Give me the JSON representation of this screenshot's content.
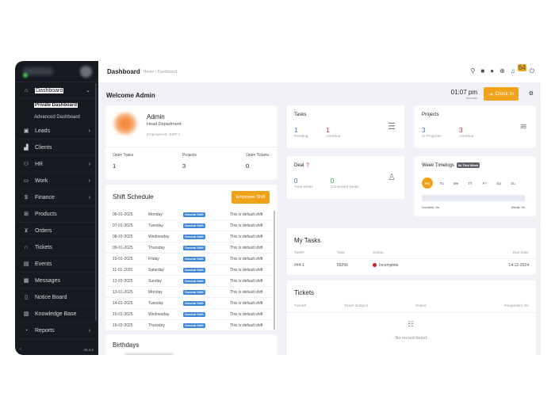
{
  "sidebar": {
    "items": [
      {
        "label": "Dashboard",
        "icon": "home-icon",
        "glyph": "⌂",
        "chevron": "⌄",
        "active": true
      },
      {
        "label": "Leads",
        "icon": "id-card-icon",
        "glyph": "▣",
        "chevron": "›"
      },
      {
        "label": "Clients",
        "icon": "bar-chart-icon",
        "glyph": "▟"
      },
      {
        "label": "HR",
        "icon": "users-icon",
        "glyph": "⚇",
        "chevron": "›"
      },
      {
        "label": "Work",
        "icon": "briefcase-icon",
        "glyph": "▭",
        "chevron": "›"
      },
      {
        "label": "Finance",
        "icon": "dollar-icon",
        "glyph": "$",
        "chevron": "›"
      },
      {
        "label": "Products",
        "icon": "basket-icon",
        "glyph": "⊞"
      },
      {
        "label": "Orders",
        "icon": "cart-icon",
        "glyph": "⊻"
      },
      {
        "label": "Tickets",
        "icon": "headset-icon",
        "glyph": "∩"
      },
      {
        "label": "Events",
        "icon": "calendar-icon",
        "glyph": "▤"
      },
      {
        "label": "Messages",
        "icon": "message-icon",
        "glyph": "▦"
      },
      {
        "label": "Notice Board",
        "icon": "clipboard-icon",
        "glyph": "▯"
      },
      {
        "label": "Knowledge Base",
        "icon": "document-icon",
        "glyph": "▧"
      },
      {
        "label": "Reports",
        "icon": "pie-chart-icon",
        "glyph": "◔",
        "chevron": "›"
      }
    ],
    "sub_items": [
      "Private Dashboard",
      "Advanced Dashboard"
    ],
    "collapse_glyph": "‹",
    "version": "v5.4.6"
  },
  "header": {
    "title": "Dashboard",
    "breadcrumb": "Home • Dashboard",
    "notification_count": "64",
    "icons": {
      "search": "⚲",
      "sticky": "■",
      "clock": "●",
      "add": "⊕",
      "bell": "♫",
      "power": "⏻"
    }
  },
  "main": {
    "welcome": "Welcome Admin",
    "time": "01:07 pm",
    "day": "Monday",
    "clock_in_label": "Clock In",
    "clock_in_glyph": "⇥",
    "settings_glyph": "⚙"
  },
  "profile": {
    "name": "Admin",
    "department": "Head Department",
    "employee_id": "Employee Id : EMP-1",
    "stats": [
      {
        "label": "Open Tasks",
        "value": "1"
      },
      {
        "label": "Projects",
        "value": "3"
      },
      {
        "label": "Open Tickets",
        "value": "0"
      }
    ]
  },
  "shift_schedule": {
    "title": "Shift Schedule",
    "button": "Employee Shift",
    "rows": [
      {
        "date": "06-01-2025",
        "day": "Monday",
        "shift": "General Shift",
        "note": "This is default shift"
      },
      {
        "date": "07-01-2025",
        "day": "Tuesday",
        "shift": "General Shift",
        "note": "This is default shift"
      },
      {
        "date": "08-01-2025",
        "day": "Wednesday",
        "shift": "General Shift",
        "note": "This is default shift"
      },
      {
        "date": "09-01-2025",
        "day": "Thursday",
        "shift": "General Shift",
        "note": "This is default shift"
      },
      {
        "date": "10-01-2025",
        "day": "Friday",
        "shift": "General Shift",
        "note": "This is default shift"
      },
      {
        "date": "11-01-2025",
        "day": "Saturday",
        "shift": "General Shift",
        "note": "This is default shift"
      },
      {
        "date": "12-01-2025",
        "day": "Sunday",
        "shift": "General Shift",
        "note": "This is default shift"
      },
      {
        "date": "13-01-2025",
        "day": "Monday",
        "shift": "General Shift",
        "note": "This is default shift"
      },
      {
        "date": "14-01-2025",
        "day": "Tuesday",
        "shift": "General Shift",
        "note": "This is default shift"
      },
      {
        "date": "15-01-2025",
        "day": "Wednesday",
        "shift": "General Shift",
        "note": "This is default shift"
      },
      {
        "date": "16-01-2025",
        "day": "Thursday",
        "shift": "General Shift",
        "note": "This is default shift"
      }
    ]
  },
  "birthdays": {
    "title": "Birthdays"
  },
  "tasks_card": {
    "title": "Tasks",
    "pending": "1",
    "pending_label": "Pending",
    "overdue": "1",
    "overdue_label": "Overdue",
    "glyph": "☰"
  },
  "projects_card": {
    "title": "Projects",
    "in_progress": "3",
    "in_progress_label": "In Progress",
    "overdue": "3",
    "overdue_label": "Overdue",
    "glyph": "≋"
  },
  "deal_card": {
    "title": "Deal",
    "help_glyph": "❓",
    "total": "0",
    "total_label": "Total Deals",
    "converted": "0",
    "converted_label": "Converted Deals",
    "glyph": "♙"
  },
  "week_timelogs": {
    "title": "Week Timelogs",
    "badge": "0s This Week",
    "days": [
      "Mo",
      "Tu",
      "We",
      "Th",
      "Fr",
      "Sa",
      "Su"
    ],
    "duration": "Duration: 0s",
    "break": "Break: 0s"
  },
  "my_tasks": {
    "title": "My Tasks",
    "columns": [
      "Task#",
      "Task",
      "Status",
      "Due Date"
    ],
    "rows": [
      {
        "id": "##4-1",
        "task": "59256",
        "status": "Incomplete",
        "due": "14-12-2024"
      }
    ]
  },
  "tickets": {
    "title": "Tickets",
    "columns": [
      "Ticket#",
      "Ticket Subject",
      "Status",
      "Requested On"
    ],
    "empty": "- No record found. -",
    "empty_glyph": "☷"
  },
  "colors": {
    "accent": "#f0a21a",
    "sidebar": "#171a21",
    "blue": "#3e6fc7",
    "red": "#c8202b",
    "green": "#2fa84f",
    "badge_blue": "#3f86d4"
  }
}
